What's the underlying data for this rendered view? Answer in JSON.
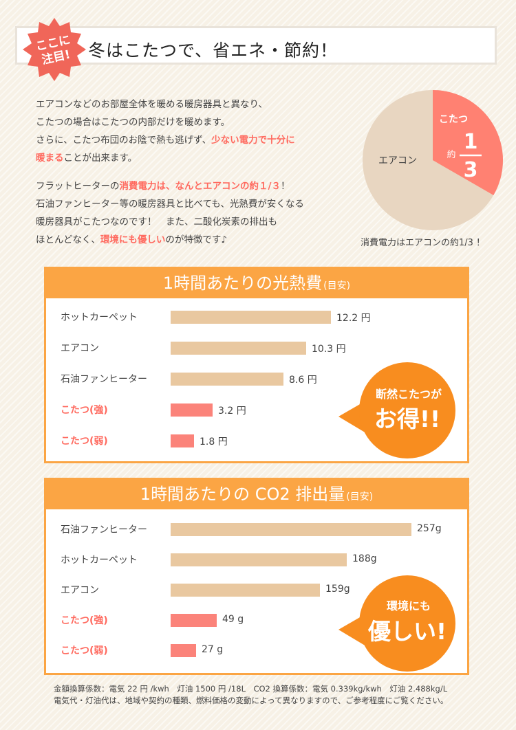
{
  "header": {
    "badge_lines": [
      "ここに",
      "注目!"
    ],
    "title": "冬はこたつで、省エネ・節約！"
  },
  "intro": {
    "p1": [
      [
        {
          "t": "エアコンなどのお部屋全体を暖める暖房器具と異なり、"
        }
      ],
      [
        {
          "t": "こたつの場合はこたつの内部だけを暖めます。"
        }
      ],
      [
        {
          "t": "さらに、こたつ布団のお陰で熱も逃げず、"
        },
        {
          "t": "少ない電力で十分に",
          "hl": true
        }
      ],
      [
        {
          "t": "暖まる",
          "hl": true
        },
        {
          "t": "ことが出来ます。"
        }
      ]
    ],
    "p2": [
      [
        {
          "t": "フラットヒーターの"
        },
        {
          "t": "消費電力は、なんとエアコンの約１/３",
          "hl": true
        },
        {
          "t": "！"
        }
      ],
      [
        {
          "t": "石油ファンヒーター等の暖房器具と比べても、光熱費が安くなる"
        }
      ],
      [
        {
          "t": "暖房器具がこたつなのです！　また、二酸化炭素の排出も"
        }
      ],
      [
        {
          "t": "ほとんどなく、"
        },
        {
          "t": "環境にも優しい",
          "hl": true
        },
        {
          "t": "のが特徴です♪"
        }
      ]
    ]
  },
  "pie": {
    "slices": [
      {
        "label": "エアコン",
        "share": 0.6667,
        "color": "#e8d6c1"
      },
      {
        "label": "こたつ",
        "share": 0.3333,
        "color": "#ff8172"
      }
    ],
    "kotatsu_label": "こたつ",
    "approx_label": "約",
    "fraction_num": "1",
    "fraction_den": "3",
    "aircon_label": "エアコン",
    "caption": "消費電力はエアコンの約1/3 ！"
  },
  "panel_cost": {
    "title": "1時間あたりの光熱費",
    "title_small": "(目安)",
    "bubble_lines": [
      "断然こたつが",
      "お得!!"
    ]
  },
  "panel_co2": {
    "title": "1時間あたりの CO2 排出量",
    "title_small": "(目安)",
    "bubble_lines": [
      "環境にも",
      "優しい!"
    ]
  },
  "chart_data": [
    {
      "type": "bar",
      "orientation": "horizontal",
      "title": "1時間あたりの光熱費(目安)",
      "categories": [
        "ホットカーペット",
        "エアコン",
        "石油ファンヒーター",
        "こたつ(強)",
        "こたつ(弱)"
      ],
      "values": [
        12.2,
        10.3,
        8.6,
        3.2,
        1.8
      ],
      "value_labels": [
        "12.2 円",
        "10.3 円",
        "8.6 円",
        "3.2 円",
        "1.8 円"
      ],
      "highlight": [
        false,
        false,
        false,
        true,
        true
      ],
      "colors": {
        "normal": "#e9c8a0",
        "highlight": "#fb837a"
      },
      "grid": false
    },
    {
      "type": "bar",
      "orientation": "horizontal",
      "title": "1時間あたりの CO2 排出量(目安)",
      "categories": [
        "石油ファンヒーター",
        "ホットカーペット",
        "エアコン",
        "こたつ(強)",
        "こたつ(弱)"
      ],
      "values": [
        257,
        188,
        159,
        49,
        27
      ],
      "value_labels": [
        "257g",
        "188g",
        "159g",
        "49 g",
        "27 g"
      ],
      "highlight": [
        false,
        false,
        false,
        true,
        true
      ],
      "colors": {
        "normal": "#e9c8a0",
        "highlight": "#fb837a"
      },
      "grid": false
    }
  ],
  "footnotes": [
    "金額換算係数：電気 22 円 /kwh　灯油 1500 円 /18L　CO2 換算係数：電気 0.339kg/kwh　灯油 2.488kg/L",
    "電気代・灯油代は、地域や契約の種類、燃料価格の変動によって異なりますので、ご参考程度にご覧ください。"
  ],
  "colors": {
    "accent_orange": "#fba544",
    "highlight_red": "#ff6a5f",
    "badge_red": "#f06659",
    "bubble_orange": "#f88d1f"
  }
}
